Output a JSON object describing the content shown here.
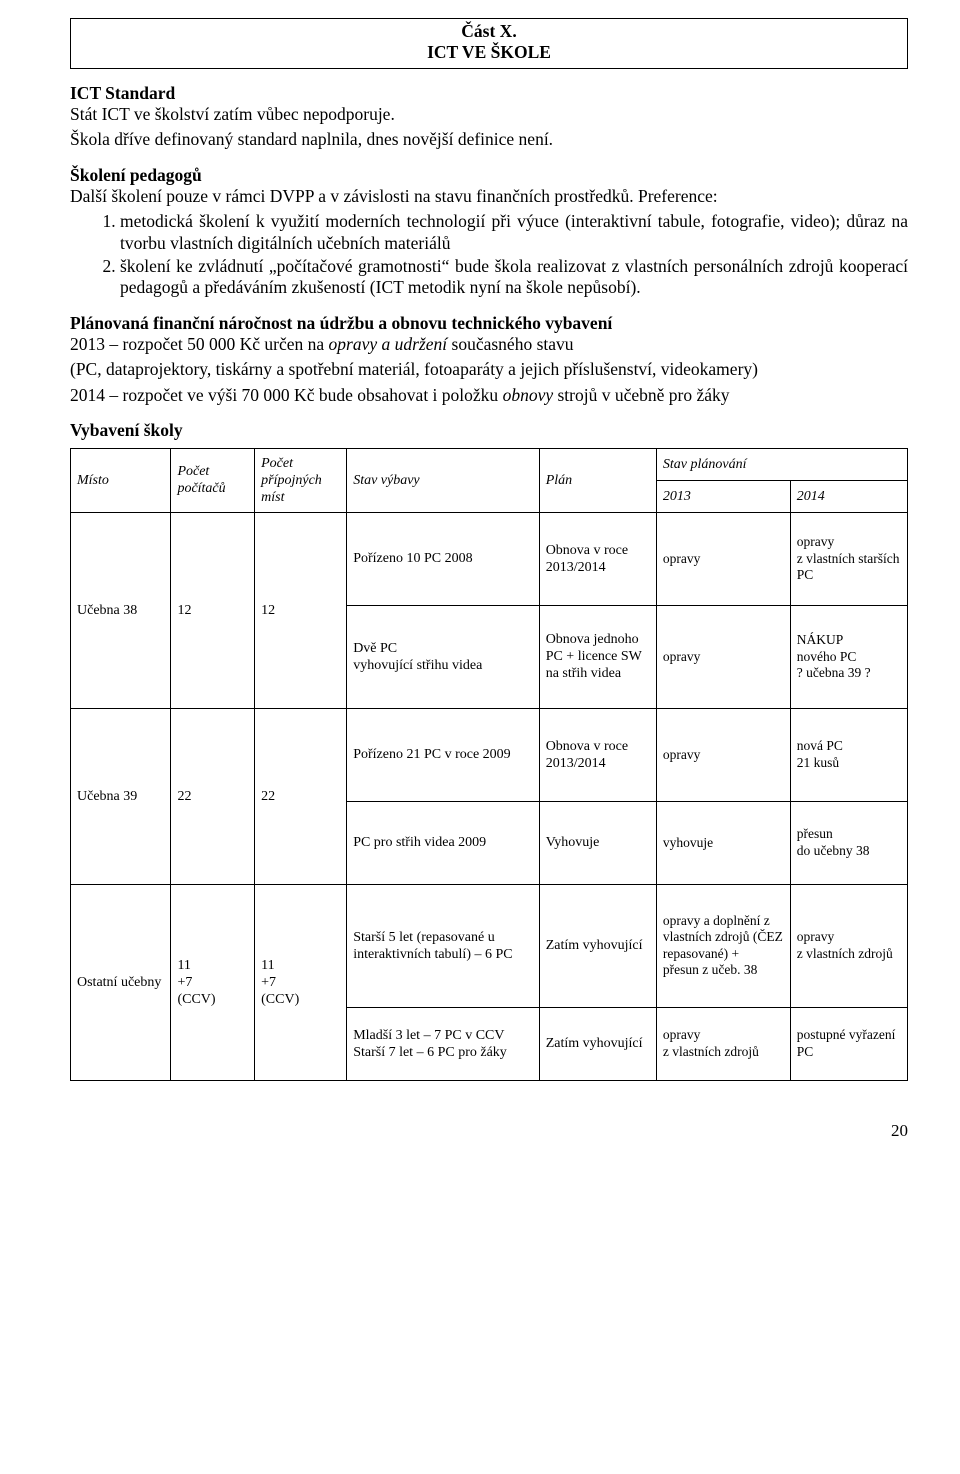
{
  "title": {
    "line1": "Část X.",
    "line2": "ICT VE ŠKOLE"
  },
  "s1": {
    "heading": "ICT Standard",
    "p1": "Stát ICT ve školství zatím vůbec nepodporuje.",
    "p2": "Škola dříve definovaný standard naplnila, dnes novější definice není."
  },
  "s2": {
    "heading": "Školení pedagogů",
    "intro": "Další školení pouze v rámci DVPP a v závislosti na stavu finančních prostředků. Preference:",
    "li1": "metodická školení k využití moderních technologií při výuce (interaktivní tabule, fotografie, video); důraz na tvorbu vlastních digitálních učebních materiálů",
    "li2": "školení ke zvládnutí „počítačové gramotnosti“ bude škola realizovat z vlastních personálních zdrojů kooperací pedagogů a předáváním zkušeností (ICT metodik nyní na škole nepůsobí)."
  },
  "s3": {
    "heading": "Plánovaná finanční náročnost na údržbu a obnovu technického vybavení",
    "p1a": "2013 – rozpočet 50 000 Kč určen na ",
    "p1i": "opravy a udržení",
    "p1b": " současného stavu",
    "p2": "(PC, dataprojektory, tiskárny a spotřební materiál, fotoaparáty a jejich příslušenství, videokamery)",
    "p3a": "2014 – rozpočet ve výši 70 000 Kč bude obsahovat i položku ",
    "p3i": "obnovy",
    "p3b": " strojů v učebně pro žáky"
  },
  "s4": {
    "heading": "Vybavení školy"
  },
  "tbl": {
    "hdr": {
      "misto": "Místo",
      "pocet_pc": "Počet počítačů",
      "pocet_prip": "Počet přípojných míst",
      "stav_vybavy": "Stav výbavy",
      "plan": "Plán",
      "stav_planovani": "Stav plánování",
      "y2013": "2013",
      "y2014": "2014"
    },
    "r1": {
      "misto": "Učebna 38",
      "pc": "12",
      "prip": "12",
      "row1": {
        "vybava": "Pořízeno 10 PC 2008",
        "plan": "Obnova v roce 2013/2014",
        "s2013": "opravy",
        "s2014": "opravy\nz vlastních starších PC"
      },
      "row2": {
        "vybava": "Dvě PC\nvyhovující střihu videa",
        "plan": "Obnova jednoho PC + licence SW\nna střih videa",
        "s2013": "opravy",
        "s2014": "NÁKUP\nnového PC\n?  učebna 39 ?"
      }
    },
    "r2": {
      "misto": "Učebna 39",
      "pc": "22",
      "prip": "22",
      "row1": {
        "vybava": "Pořízeno 21 PC v roce 2009",
        "plan": "Obnova v roce 2013/2014",
        "s2013": "opravy",
        "s2014": "nová PC\n21 kusů"
      },
      "row2": {
        "vybava": "PC pro střih videa 2009",
        "plan": "Vyhovuje",
        "s2013": "vyhovuje",
        "s2014": "přesun\ndo učebny 38"
      }
    },
    "r3": {
      "misto": "Ostatní učebny",
      "pc": "11\n+7\n(CCV)",
      "prip": "11\n+7\n(CCV)",
      "row1": {
        "vybava": "Starší 5 let (repasované u interaktivních tabulí) – 6 PC",
        "plan": "Zatím vyhovující",
        "s2013": "opravy a doplnění z vlastních zdrojů (ČEZ repasované) +\npřesun z učeb. 38",
        "s2014": "opravy\nz vlastních zdrojů"
      },
      "row2": {
        "vybava": "Mladší 3 let – 7 PC v CCV\nStarší 7 let – 6 PC pro žáky",
        "plan": "Zatím vyhovující",
        "s2013": "opravy\nz vlastních zdrojů",
        "s2014": "postupné vyřazení PC"
      }
    }
  },
  "pagenum": "20"
}
